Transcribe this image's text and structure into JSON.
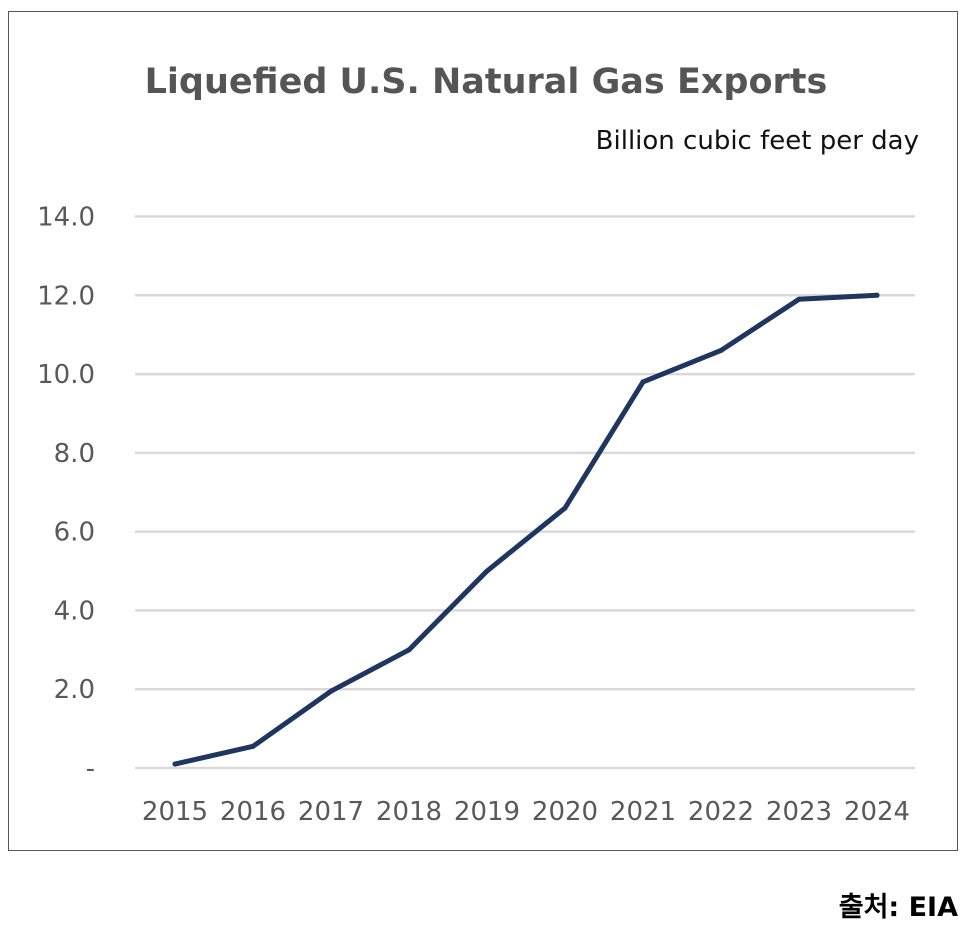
{
  "source": "출처: EIA",
  "chart_data": {
    "type": "line",
    "title": "Liquefied U.S. Natural Gas Exports",
    "unit_label": "Billion cubic feet per day",
    "xlabel": "",
    "ylabel": "",
    "categories": [
      "2015",
      "2016",
      "2017",
      "2018",
      "2019",
      "2020",
      "2021",
      "2022",
      "2023",
      "2024"
    ],
    "series": [
      {
        "values": [
          0.1,
          0.55,
          1.95,
          3.0,
          5.0,
          6.6,
          9.8,
          10.6,
          11.9,
          12.0
        ],
        "color": "#1f3660"
      }
    ],
    "ylim": [
      0,
      14
    ],
    "y_ticks": [
      {
        "value": 0,
        "label": "-"
      },
      {
        "value": 2,
        "label": "2.0"
      },
      {
        "value": 4,
        "label": "4.0"
      },
      {
        "value": 6,
        "label": "6.0"
      },
      {
        "value": 8,
        "label": "8.0"
      },
      {
        "value": 10,
        "label": "10.0"
      },
      {
        "value": 12,
        "label": "12.0"
      },
      {
        "value": 14,
        "label": "14.0"
      }
    ],
    "grid": true,
    "gridline_color": "#d9d9d9",
    "legend": "none"
  }
}
